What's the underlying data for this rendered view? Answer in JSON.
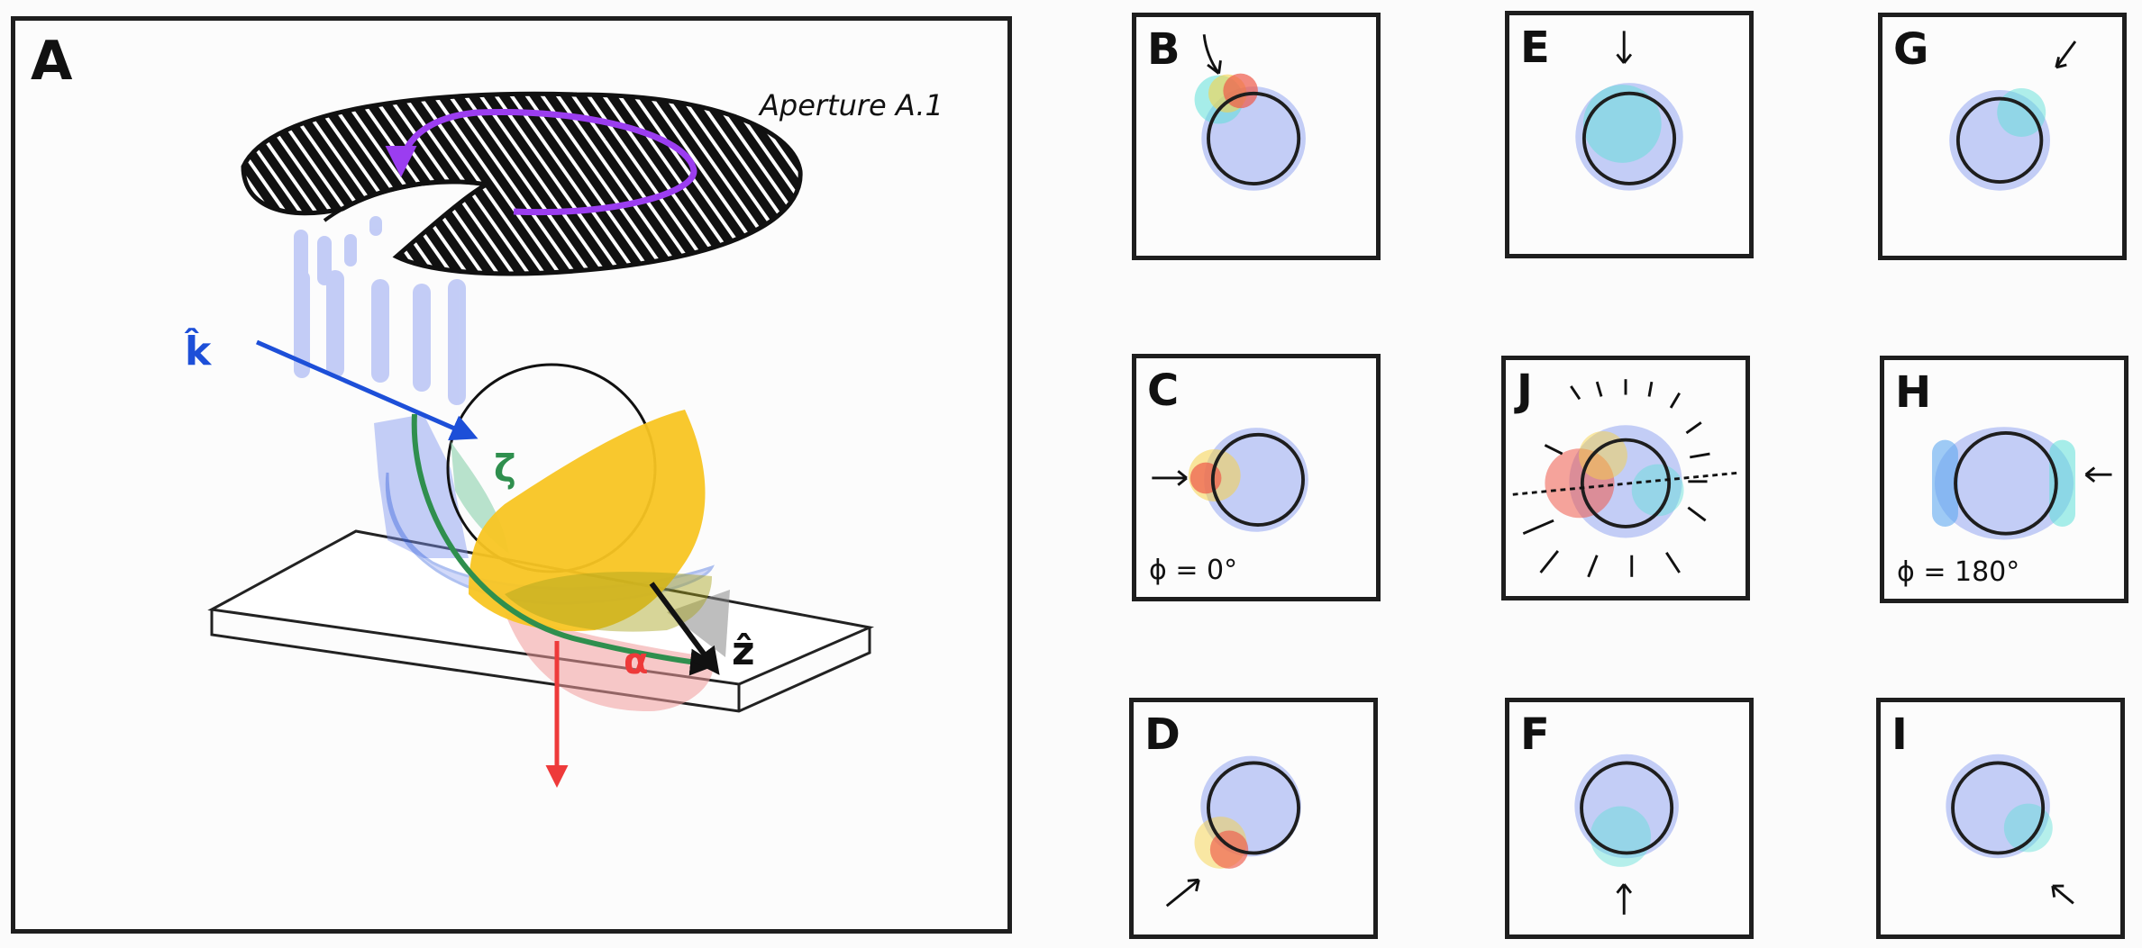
{
  "panel_a": {
    "label": "A",
    "aperture_label": "Aperture A.1",
    "k_label": "k̂",
    "zeta_label": "ζ",
    "alpha_label": "α",
    "z_label": "ẑ"
  },
  "panels": [
    {
      "id": "B",
      "label": "B",
      "note": ""
    },
    {
      "id": "E",
      "label": "E",
      "note": ""
    },
    {
      "id": "G",
      "label": "G",
      "note": ""
    },
    {
      "id": "C",
      "label": "C",
      "note": "ϕ = 0°"
    },
    {
      "id": "J",
      "label": "J",
      "note": ""
    },
    {
      "id": "H",
      "label": "H",
      "note": "ϕ = 180°"
    },
    {
      "id": "D",
      "label": "D",
      "note": ""
    },
    {
      "id": "F",
      "label": "F",
      "note": ""
    },
    {
      "id": "I",
      "label": "I",
      "note": ""
    }
  ],
  "colors": {
    "frame": "#1e1e1e",
    "blue_glow": "#7f94f0",
    "cyan_glow": "#5fe0d8",
    "red_glow": "#ee5a4a",
    "yellow_glow": "#f6d24a",
    "k_arrow": "#1d4fd8",
    "zeta_arc": "#2f8f4e",
    "alpha_arrow": "#ee3a3a",
    "yellow_shape": "#f8c523",
    "purple_arrow": "#9b3df0"
  }
}
